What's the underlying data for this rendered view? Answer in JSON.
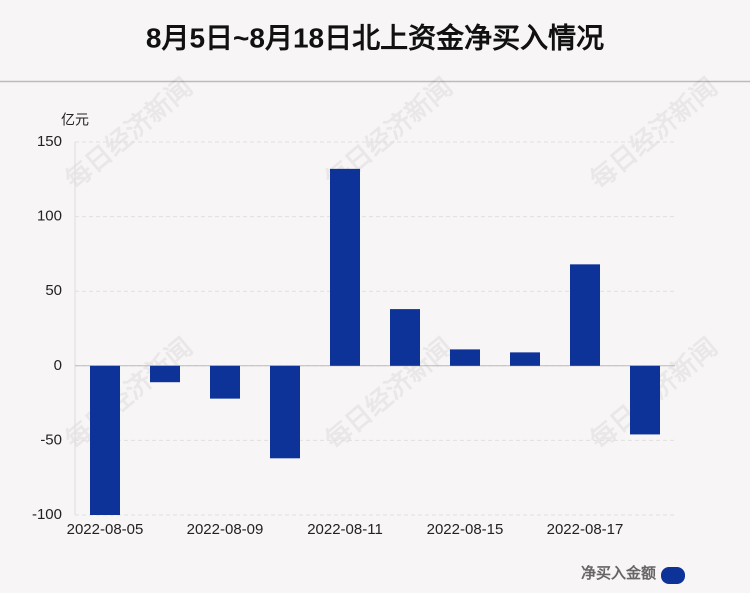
{
  "chart_data": {
    "type": "bar",
    "title": "8月5日~8月18日北上资金净买入情况",
    "y_label": "亿元",
    "watermark": "每日经济新闻",
    "categories": [
      "2022-08-05",
      null,
      "2022-08-09",
      null,
      "2022-08-11",
      null,
      "2022-08-15",
      null,
      "2022-08-17",
      null
    ],
    "series": [
      {
        "name": "净买入金额",
        "color": "#0d3399",
        "values": [
          -100,
          -11,
          -22,
          -62,
          132,
          38,
          11,
          9,
          68,
          -46
        ]
      }
    ],
    "ylim": [
      -100,
      150
    ],
    "yticks": [
      -100,
      -50,
      0,
      50,
      100,
      150
    ],
    "grid": true,
    "legend": "bottom-right"
  }
}
